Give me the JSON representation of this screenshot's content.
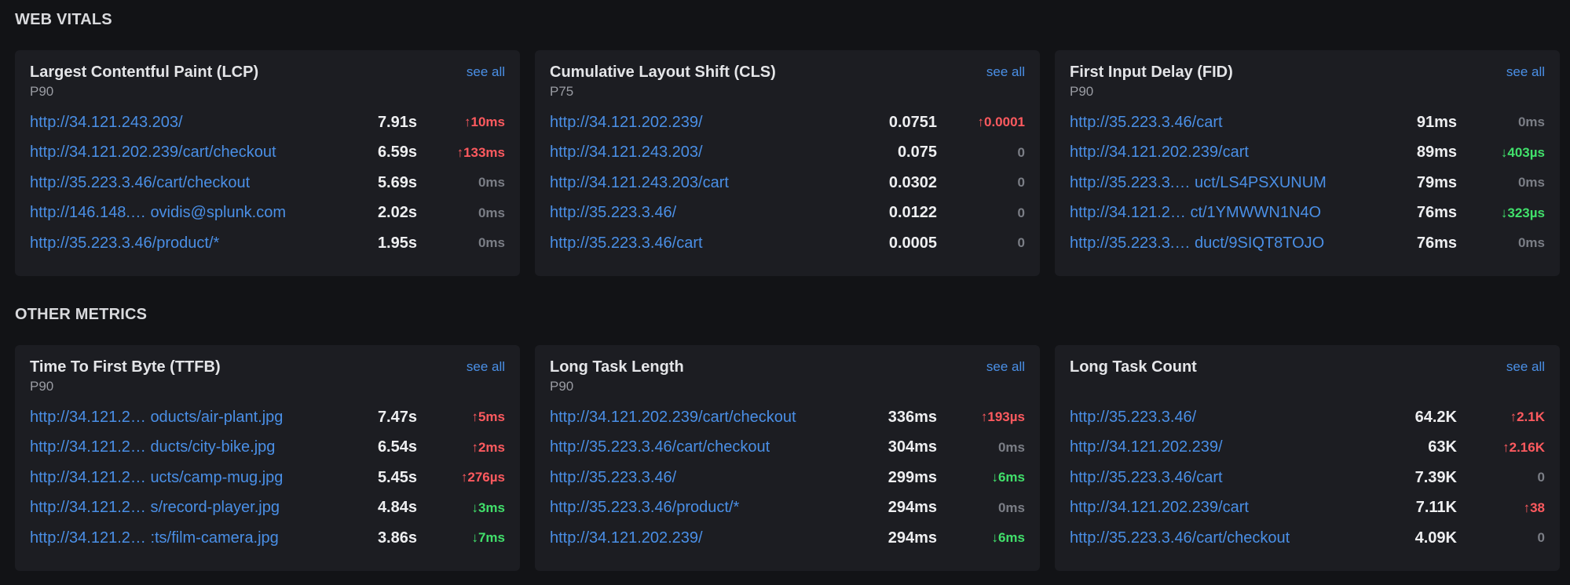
{
  "sections": [
    {
      "title": "WEB VITALS",
      "cards": [
        {
          "title": "Largest Contentful Paint (LCP)",
          "subtitle": "P90",
          "see_all": "see all",
          "rows": [
            {
              "url": "http://34.121.243.203/",
              "value": "7.91s",
              "delta": "↑10ms",
              "trend": "up"
            },
            {
              "url": "http://34.121.202.239/cart/checkout",
              "value": "6.59s",
              "delta": "↑133ms",
              "trend": "up"
            },
            {
              "url": "http://35.223.3.46/cart/checkout",
              "value": "5.69s",
              "delta": "0ms",
              "trend": "flat"
            },
            {
              "url": "http://146.148.… ovidis@splunk.com",
              "value": "2.02s",
              "delta": "0ms",
              "trend": "flat"
            },
            {
              "url": "http://35.223.3.46/product/*",
              "value": "1.95s",
              "delta": "0ms",
              "trend": "flat"
            }
          ]
        },
        {
          "title": "Cumulative Layout Shift (CLS)",
          "subtitle": "P75",
          "see_all": "see all",
          "rows": [
            {
              "url": "http://34.121.202.239/",
              "value": "0.0751",
              "delta": "↑0.0001",
              "trend": "up"
            },
            {
              "url": "http://34.121.243.203/",
              "value": "0.075",
              "delta": "0",
              "trend": "flat"
            },
            {
              "url": "http://34.121.243.203/cart",
              "value": "0.0302",
              "delta": "0",
              "trend": "flat"
            },
            {
              "url": "http://35.223.3.46/",
              "value": "0.0122",
              "delta": "0",
              "trend": "flat"
            },
            {
              "url": "http://35.223.3.46/cart",
              "value": "0.0005",
              "delta": "0",
              "trend": "flat"
            }
          ]
        },
        {
          "title": "First Input Delay (FID)",
          "subtitle": "P90",
          "see_all": "see all",
          "rows": [
            {
              "url": "http://35.223.3.46/cart",
              "value": "91ms",
              "delta": "0ms",
              "trend": "flat"
            },
            {
              "url": "http://34.121.202.239/cart",
              "value": "89ms",
              "delta": "↓403µs",
              "trend": "down"
            },
            {
              "url": "http://35.223.3.… uct/LS4PSXUNUM",
              "value": "79ms",
              "delta": "0ms",
              "trend": "flat"
            },
            {
              "url": "http://34.121.2… ct/1YMWWN1N4O",
              "value": "76ms",
              "delta": "↓323µs",
              "trend": "down"
            },
            {
              "url": "http://35.223.3.… duct/9SIQT8TOJO",
              "value": "76ms",
              "delta": "0ms",
              "trend": "flat"
            }
          ]
        }
      ]
    },
    {
      "title": "OTHER METRICS",
      "cards": [
        {
          "title": "Time To First Byte (TTFB)",
          "subtitle": "P90",
          "see_all": "see all",
          "rows": [
            {
              "url": "http://34.121.2… oducts/air-plant.jpg",
              "value": "7.47s",
              "delta": "↑5ms",
              "trend": "up"
            },
            {
              "url": "http://34.121.2… ducts/city-bike.jpg",
              "value": "6.54s",
              "delta": "↑2ms",
              "trend": "up"
            },
            {
              "url": "http://34.121.2… ucts/camp-mug.jpg",
              "value": "5.45s",
              "delta": "↑276µs",
              "trend": "up"
            },
            {
              "url": "http://34.121.2… s/record-player.jpg",
              "value": "4.84s",
              "delta": "↓3ms",
              "trend": "down"
            },
            {
              "url": "http://34.121.2… :ts/film-camera.jpg",
              "value": "3.86s",
              "delta": "↓7ms",
              "trend": "down"
            }
          ]
        },
        {
          "title": "Long Task Length",
          "subtitle": "P90",
          "see_all": "see all",
          "rows": [
            {
              "url": "http://34.121.202.239/cart/checkout",
              "value": "336ms",
              "delta": "↑193µs",
              "trend": "up"
            },
            {
              "url": "http://35.223.3.46/cart/checkout",
              "value": "304ms",
              "delta": "0ms",
              "trend": "flat"
            },
            {
              "url": "http://35.223.3.46/",
              "value": "299ms",
              "delta": "↓6ms",
              "trend": "down"
            },
            {
              "url": "http://35.223.3.46/product/*",
              "value": "294ms",
              "delta": "0ms",
              "trend": "flat"
            },
            {
              "url": "http://34.121.202.239/",
              "value": "294ms",
              "delta": "↓6ms",
              "trend": "down"
            }
          ]
        },
        {
          "title": "Long Task Count",
          "subtitle": "",
          "see_all": "see all",
          "rows": [
            {
              "url": "http://35.223.3.46/",
              "value": "64.2K",
              "delta": "↑2.1K",
              "trend": "up"
            },
            {
              "url": "http://34.121.202.239/",
              "value": "63K",
              "delta": "↑2.16K",
              "trend": "up"
            },
            {
              "url": "http://35.223.3.46/cart",
              "value": "7.39K",
              "delta": "0",
              "trend": "flat"
            },
            {
              "url": "http://34.121.202.239/cart",
              "value": "7.11K",
              "delta": "↑38",
              "trend": "up"
            },
            {
              "url": "http://35.223.3.46/cart/checkout",
              "value": "4.09K",
              "delta": "0",
              "trend": "flat"
            }
          ]
        }
      ]
    }
  ],
  "colors": {
    "background": "#121316",
    "card": "#1c1d22",
    "link": "#4a8fe6",
    "up": "#ff5a5f",
    "down": "#41e06b",
    "flat": "#7b7e86"
  }
}
